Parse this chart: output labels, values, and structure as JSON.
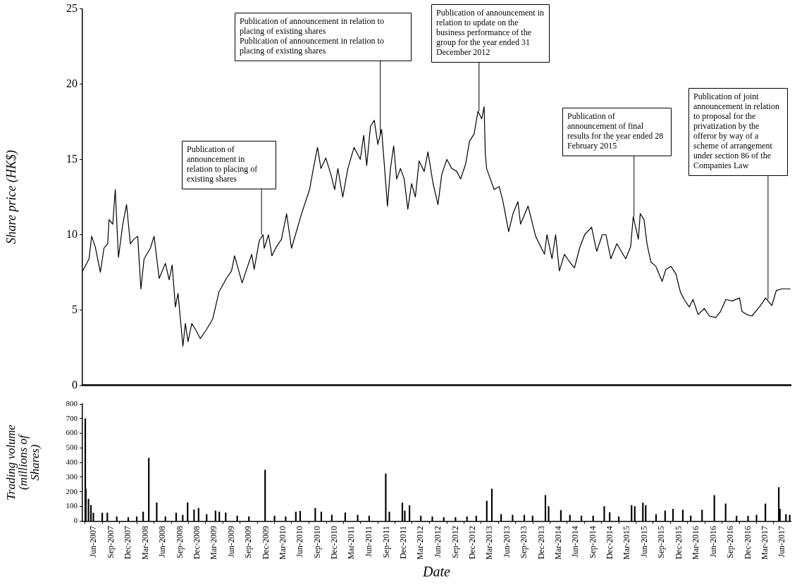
{
  "chart_data": [
    {
      "type": "line",
      "ylabel": "Share price (HK$)",
      "color": "#000000",
      "marker": "none",
      "tick_labels": "y",
      "xlim": [
        "2007-04-02",
        "2017-07-15"
      ],
      "ylim": [
        0,
        25
      ],
      "yticks": [
        0,
        5,
        10,
        15,
        20,
        25
      ],
      "x": [
        "2007-04-04",
        "2007-05-07",
        "2007-05-21",
        "2007-06-09",
        "2007-07-06",
        "2007-07-25",
        "2007-08-14",
        "2007-08-21",
        "2007-09-10",
        "2007-09-23",
        "2007-10-10",
        "2007-11-02",
        "2007-11-22",
        "2007-12-12",
        "2007-12-31",
        "2008-01-20",
        "2008-02-06",
        "2008-02-23",
        "2008-03-27",
        "2008-04-16",
        "2008-05-13",
        "2008-06-15",
        "2008-07-05",
        "2008-07-21",
        "2008-08-07",
        "2008-08-21",
        "2008-09-16",
        "2008-09-29",
        "2008-10-13",
        "2008-11-02",
        "2008-11-22",
        "2008-12-17",
        "2009-01-19",
        "2009-02-21",
        "2009-03-26",
        "2009-05-05",
        "2009-06-01",
        "2009-06-17",
        "2009-07-27",
        "2009-08-20",
        "2009-09-16",
        "2009-09-29",
        "2009-10-26",
        "2009-11-15",
        "2009-11-21",
        "2009-12-14",
        "2010-01-01",
        "2010-01-25",
        "2010-02-21",
        "2010-03-20",
        "2010-04-15",
        "2010-06-10",
        "2010-07-20",
        "2010-08-09",
        "2010-08-31",
        "2010-09-18",
        "2010-10-14",
        "2010-11-10",
        "2010-11-30",
        "2010-12-17",
        "2011-01-12",
        "2011-02-08",
        "2011-03-13",
        "2011-04-15",
        "2011-05-03",
        "2011-05-19",
        "2011-06-08",
        "2011-06-28",
        "2011-07-17",
        "2011-08-06",
        "2011-08-22",
        "2011-09-06",
        "2011-09-22",
        "2011-10-09",
        "2011-10-25",
        "2011-11-14",
        "2011-12-04",
        "2011-12-23",
        "2012-01-12",
        "2012-02-01",
        "2012-02-21",
        "2012-03-19",
        "2012-04-08",
        "2012-05-05",
        "2012-05-31",
        "2012-06-20",
        "2012-07-17",
        "2012-08-12",
        "2012-09-08",
        "2012-09-28",
        "2012-10-25",
        "2012-11-14",
        "2012-12-09",
        "2012-12-29",
        "2013-01-18",
        "2013-01-31",
        "2013-02-06",
        "2013-02-13",
        "2013-03-05",
        "2013-03-25",
        "2013-04-21",
        "2013-05-11",
        "2013-06-10",
        "2013-07-03",
        "2013-07-29",
        "2013-08-12",
        "2013-09-21",
        "2013-10-31",
        "2013-12-17",
        "2013-12-30",
        "2014-01-26",
        "2014-02-14",
        "2014-03-06",
        "2014-04-02",
        "2014-04-29",
        "2014-05-25",
        "2014-06-21",
        "2014-07-18",
        "2014-08-24",
        "2014-09-20",
        "2014-10-20",
        "2014-11-08",
        "2014-12-04",
        "2015-01-05",
        "2015-02-21",
        "2015-03-19",
        "2015-04-02",
        "2015-04-29",
        "2015-05-09",
        "2015-05-29",
        "2015-06-14",
        "2015-07-04",
        "2015-07-31",
        "2015-09-02",
        "2015-09-22",
        "2015-10-19",
        "2015-11-14",
        "2015-12-08",
        "2015-12-28",
        "2016-01-24",
        "2016-02-13",
        "2016-03-11",
        "2016-04-13",
        "2016-05-10",
        "2016-06-12",
        "2016-07-08",
        "2016-08-05",
        "2016-09-07",
        "2016-10-17",
        "2016-10-30",
        "2016-11-24",
        "2016-12-21",
        "2017-01-30",
        "2017-03-04",
        "2017-04-06",
        "2017-04-30",
        "2017-05-29",
        "2017-07-14"
      ],
      "values": [
        7.6,
        8.4,
        9.9,
        9.2,
        7.5,
        9.1,
        9.4,
        11.0,
        10.7,
        13.0,
        8.5,
        10.7,
        12.0,
        9.4,
        9.7,
        9.9,
        6.4,
        8.4,
        9.1,
        9.9,
        7.1,
        8.1,
        7.0,
        8.0,
        5.2,
        6.1,
        2.6,
        4.1,
        2.9,
        4.1,
        3.7,
        3.1,
        3.7,
        4.4,
        6.2,
        7.1,
        7.6,
        8.6,
        6.8,
        7.7,
        8.7,
        7.7,
        9.6,
        10.0,
        9.1,
        10.0,
        8.6,
        9.2,
        9.7,
        11.4,
        9.1,
        11.5,
        13.0,
        14.4,
        15.8,
        14.4,
        15.1,
        14.0,
        13.0,
        14.4,
        12.5,
        14.4,
        15.8,
        15.0,
        16.6,
        14.6,
        17.2,
        17.6,
        16.0,
        17.0,
        14.4,
        11.9,
        14.4,
        15.9,
        13.7,
        14.4,
        13.7,
        11.7,
        13.4,
        12.5,
        14.9,
        14.2,
        15.5,
        13.4,
        12.0,
        14.0,
        15.0,
        14.4,
        14.2,
        13.7,
        14.7,
        16.2,
        16.7,
        18.2,
        17.7,
        18.5,
        15.4,
        14.4,
        13.7,
        13.0,
        13.2,
        12.2,
        10.2,
        11.4,
        12.2,
        10.7,
        11.9,
        9.9,
        8.7,
        10.0,
        8.4,
        10.0,
        7.6,
        8.7,
        8.2,
        7.8,
        9.1,
        10.0,
        10.5,
        8.9,
        10.0,
        10.0,
        8.4,
        9.4,
        8.4,
        9.2,
        11.2,
        9.7,
        11.4,
        11.0,
        9.4,
        8.2,
        7.9,
        6.9,
        7.7,
        7.9,
        7.4,
        6.2,
        5.7,
        5.2,
        5.7,
        4.7,
        5.1,
        4.6,
        4.5,
        4.9,
        5.7,
        5.6,
        5.8,
        4.9,
        4.7,
        4.6,
        5.2,
        5.8,
        5.3,
        6.3,
        6.4,
        6.4
      ],
      "annotations": [
        {
          "text": "Publication of announcement in relation to placing of existing shares",
          "x": "2009-11-07",
          "y": 10.0
        },
        {
          "text": "Publication of announcement in relation to placing of existing shares\nPublication of announcement in relation to placing of existing shares",
          "x": "2011-07-30",
          "y": 16.7
        },
        {
          "text": "Publication of announcement in relation to update on the business performance of the group for the year ended 31 December 2012",
          "x": "2013-01-04",
          "y": 18.2
        },
        {
          "text": "Publication of announcement of final results for the year ended 28 February 2015",
          "x": "2015-04-06",
          "y": 11.2
        },
        {
          "text": "Publication of joint announcement in relation to proposal for the privatization by the offeror by way of a scheme of arrangement under section 86 of the Companies Law",
          "x": "2017-03-17",
          "y": 5.7
        }
      ]
    },
    {
      "type": "bar",
      "xlabel": "Date",
      "ylabel": "Trading volume\n(millions of\nShares)",
      "color": "#000000",
      "xlim": [
        "2007-04-02",
        "2017-07-15"
      ],
      "ylim": [
        0,
        800
      ],
      "yticks": [
        0,
        100,
        200,
        300,
        400,
        500,
        600,
        700,
        800
      ],
      "xticks": [
        {
          "value": "2007-06-01",
          "label": "Jun-2007"
        },
        {
          "value": "2007-09-01",
          "label": "Sep-2007"
        },
        {
          "value": "2007-12-01",
          "label": "Dec-2007"
        },
        {
          "value": "2008-03-01",
          "label": "Mar-2008"
        },
        {
          "value": "2008-06-01",
          "label": "Jun-2008"
        },
        {
          "value": "2008-09-01",
          "label": "Sep-2008"
        },
        {
          "value": "2008-12-01",
          "label": "Dec-2008"
        },
        {
          "value": "2009-03-01",
          "label": "Mar-2009"
        },
        {
          "value": "2009-06-01",
          "label": "Jun-2009"
        },
        {
          "value": "2009-09-01",
          "label": "Sep-2009"
        },
        {
          "value": "2009-12-01",
          "label": "Dec-2009"
        },
        {
          "value": "2010-03-01",
          "label": "Mar-2010"
        },
        {
          "value": "2010-06-01",
          "label": "Jun-2010"
        },
        {
          "value": "2010-09-01",
          "label": "Sep-2010"
        },
        {
          "value": "2010-12-01",
          "label": "Dec-2010"
        },
        {
          "value": "2011-03-01",
          "label": "Mar-2011"
        },
        {
          "value": "2011-06-01",
          "label": "Jun-2011"
        },
        {
          "value": "2011-09-01",
          "label": "Sep-2011"
        },
        {
          "value": "2011-12-01",
          "label": "Dec-2011"
        },
        {
          "value": "2012-03-01",
          "label": "Mar-2012"
        },
        {
          "value": "2012-06-01",
          "label": "Jun-2012"
        },
        {
          "value": "2012-09-01",
          "label": "Sep-2012"
        },
        {
          "value": "2012-12-01",
          "label": "Dec-2012"
        },
        {
          "value": "2013-03-01",
          "label": "Mar-2013"
        },
        {
          "value": "2013-06-01",
          "label": "Jun-2013"
        },
        {
          "value": "2013-09-01",
          "label": "Sep-2013"
        },
        {
          "value": "2013-12-01",
          "label": "Dec-2013"
        },
        {
          "value": "2014-03-01",
          "label": "Mar-2014"
        },
        {
          "value": "2014-06-01",
          "label": "Jun-2014"
        },
        {
          "value": "2014-09-01",
          "label": "Sep-2014"
        },
        {
          "value": "2014-12-01",
          "label": "Dec-2014"
        },
        {
          "value": "2015-03-01",
          "label": "Mar-2015"
        },
        {
          "value": "2015-06-01",
          "label": "Jun-2015"
        },
        {
          "value": "2015-09-01",
          "label": "Sep-2015"
        },
        {
          "value": "2015-12-01",
          "label": "Dec-2015"
        },
        {
          "value": "2016-03-01",
          "label": "Mar-2016"
        },
        {
          "value": "2016-06-01",
          "label": "Jun-2016"
        },
        {
          "value": "2016-09-01",
          "label": "Sep-2016"
        },
        {
          "value": "2016-12-01",
          "label": "Dec-2016"
        },
        {
          "value": "2017-03-01",
          "label": "Mar-2017"
        },
        {
          "value": "2017-06-01",
          "label": "Jun-2017"
        }
      ],
      "x": [
        "2007-04-17",
        "2007-04-20",
        "2007-05-04",
        "2007-05-17",
        "2007-05-30",
        "2007-07-16",
        "2007-08-12",
        "2007-10-01",
        "2007-12-01",
        "2008-01-15",
        "2008-02-18",
        "2008-03-19",
        "2008-04-30",
        "2008-06-15",
        "2008-08-11",
        "2008-09-15",
        "2008-10-11",
        "2008-11-14",
        "2008-12-08",
        "2009-01-20",
        "2009-03-08",
        "2009-03-28",
        "2009-05-01",
        "2009-07-01",
        "2009-09-01",
        "2009-11-26",
        "2010-01-15",
        "2010-03-15",
        "2010-05-08",
        "2010-05-31",
        "2010-08-19",
        "2010-09-20",
        "2010-11-15",
        "2011-01-25",
        "2011-04-01",
        "2011-06-01",
        "2011-08-28",
        "2011-09-16",
        "2011-11-24",
        "2011-12-07",
        "2012-01-01",
        "2012-03-01",
        "2012-05-01",
        "2012-07-01",
        "2012-09-01",
        "2012-11-01",
        "2012-12-20",
        "2013-02-14",
        "2013-03-13",
        "2013-05-01",
        "2013-07-01",
        "2013-09-01",
        "2013-10-15",
        "2013-12-22",
        "2014-01-08",
        "2014-03-14",
        "2014-05-01",
        "2014-07-01",
        "2014-09-01",
        "2014-10-30",
        "2014-11-28",
        "2015-01-15",
        "2015-03-24",
        "2015-04-10",
        "2015-05-23",
        "2015-06-07",
        "2015-08-01",
        "2015-09-18",
        "2015-10-30",
        "2015-12-21",
        "2016-02-01",
        "2016-04-01",
        "2016-06-05",
        "2016-08-04",
        "2016-10-01",
        "2016-12-01",
        "2017-01-15",
        "2017-03-03",
        "2017-05-13",
        "2017-05-19",
        "2017-06-20",
        "2017-07-10"
      ],
      "values": [
        700,
        220,
        150,
        108,
        55,
        55,
        55,
        30,
        25,
        30,
        62,
        430,
        125,
        30,
        55,
        40,
        125,
        77,
        88,
        45,
        70,
        62,
        56,
        35,
        30,
        348,
        35,
        30,
        62,
        67,
        88,
        62,
        40,
        56,
        40,
        35,
        323,
        62,
        123,
        70,
        105,
        35,
        30,
        25,
        25,
        30,
        35,
        137,
        218,
        45,
        40,
        40,
        35,
        175,
        100,
        73,
        40,
        35,
        35,
        100,
        58,
        30,
        107,
        100,
        123,
        107,
        45,
        70,
        82,
        76,
        35,
        76,
        175,
        117,
        35,
        35,
        40,
        117,
        229,
        82,
        45,
        40
      ]
    }
  ]
}
